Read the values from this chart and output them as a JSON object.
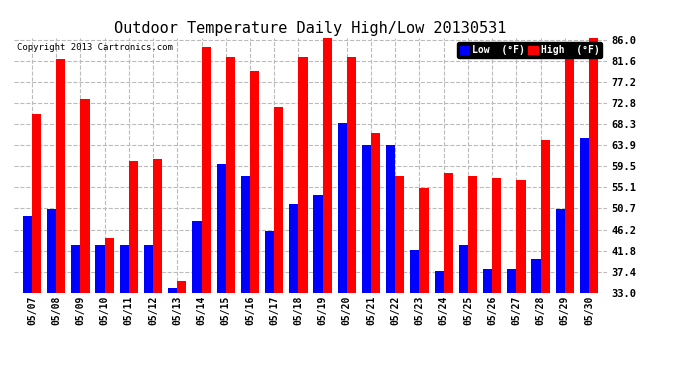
{
  "title": "Outdoor Temperature Daily High/Low 20130531",
  "copyright": "Copyright 2013 Cartronics.com",
  "dates": [
    "05/07",
    "05/08",
    "05/09",
    "05/10",
    "05/11",
    "05/12",
    "05/13",
    "05/14",
    "05/15",
    "05/16",
    "05/17",
    "05/18",
    "05/19",
    "05/20",
    "05/21",
    "05/22",
    "05/23",
    "05/24",
    "05/25",
    "05/26",
    "05/27",
    "05/28",
    "05/29",
    "05/30"
  ],
  "high": [
    70.5,
    82.0,
    73.5,
    44.5,
    60.5,
    61.0,
    35.5,
    84.5,
    82.5,
    79.5,
    72.0,
    82.5,
    86.5,
    82.5,
    66.5,
    57.5,
    55.0,
    58.0,
    57.5,
    57.0,
    56.5,
    65.0,
    83.0,
    86.5
  ],
  "low": [
    49.0,
    50.5,
    43.0,
    43.0,
    43.0,
    43.0,
    34.0,
    48.0,
    60.0,
    57.5,
    46.0,
    51.5,
    53.5,
    68.5,
    64.0,
    64.0,
    42.0,
    37.5,
    43.0,
    38.0,
    38.0,
    40.0,
    50.5,
    65.5
  ],
  "ylim_min": 33.0,
  "ylim_max": 86.0,
  "yticks": [
    33.0,
    37.4,
    41.8,
    46.2,
    50.7,
    55.1,
    59.5,
    63.9,
    68.3,
    72.8,
    77.2,
    81.6,
    86.0
  ],
  "bar_width": 0.38,
  "high_color": "#ff0000",
  "low_color": "#0000ff",
  "background_color": "#ffffff",
  "grid_color": "#bbbbbb",
  "title_fontsize": 11,
  "legend_low_label": "Low  (°F)",
  "legend_high_label": "High  (°F)"
}
